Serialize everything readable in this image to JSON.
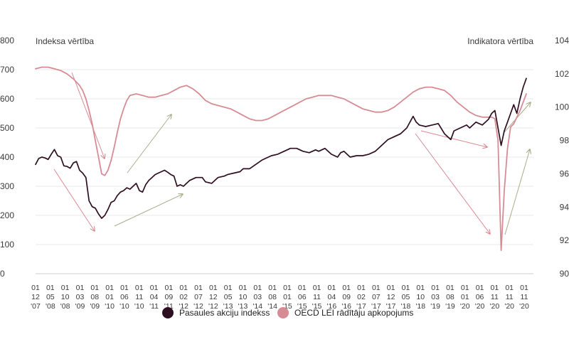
{
  "chart_data": {
    "type": "line",
    "title": "",
    "ylabel_left": "Indeksa vērtība",
    "ylabel_right": "Indikatora vērtība",
    "ylim_left": [
      0,
      800
    ],
    "yticks_left": [
      "0",
      "100",
      "200",
      "300",
      "400",
      "500",
      "600",
      "700",
      "800"
    ],
    "ylim_right": [
      90,
      104
    ],
    "yticks_right": [
      "90",
      "92",
      "94",
      "96",
      "98",
      "100",
      "102",
      "104"
    ],
    "x_tick_labels": [
      [
        "01",
        "12",
        "'07"
      ],
      [
        "01",
        "05",
        "'08"
      ],
      [
        "01",
        "10",
        "'08"
      ],
      [
        "01",
        "03",
        "'09"
      ],
      [
        "01",
        "08",
        "'09"
      ],
      [
        "01",
        "01",
        "'10"
      ],
      [
        "01",
        "06",
        "'10"
      ],
      [
        "01",
        "11",
        "'10"
      ],
      [
        "01",
        "04",
        "'11"
      ],
      [
        "01",
        "09",
        "'11"
      ],
      [
        "01",
        "02",
        "'12"
      ],
      [
        "01",
        "07",
        "'12"
      ],
      [
        "01",
        "12",
        "'12"
      ],
      [
        "01",
        "05",
        "'13"
      ],
      [
        "01",
        "10",
        "'13"
      ],
      [
        "01",
        "03",
        "'14"
      ],
      [
        "01",
        "08",
        "'14"
      ],
      [
        "01",
        "01",
        "'15"
      ],
      [
        "01",
        "06",
        "'15"
      ],
      [
        "01",
        "11",
        "'15"
      ],
      [
        "01",
        "04",
        "'16"
      ],
      [
        "01",
        "09",
        "'16"
      ],
      [
        "01",
        "02",
        "'17"
      ],
      [
        "01",
        "07",
        "'17"
      ],
      [
        "01",
        "12",
        "'17"
      ],
      [
        "01",
        "05",
        "'18"
      ],
      [
        "01",
        "10",
        "'18"
      ],
      [
        "01",
        "03",
        "'19"
      ],
      [
        "01",
        "08",
        "'19"
      ],
      [
        "01",
        "01",
        "'20"
      ],
      [
        "01",
        "06",
        "'20"
      ],
      [
        "01",
        "11",
        "'20"
      ],
      [
        "01",
        "11",
        "'20"
      ],
      [
        "01",
        "11",
        "'20"
      ]
    ],
    "series": [
      {
        "name": "Pasaules akciju indekss",
        "axis": "left",
        "color": "#2e0f22",
        "x": [
          "2007-12",
          "2008-01",
          "2008-02",
          "2008-03",
          "2008-04",
          "2008-05",
          "2008-06",
          "2008-07",
          "2008-08",
          "2008-09",
          "2008-10",
          "2008-11",
          "2008-12",
          "2009-01",
          "2009-02",
          "2009-03",
          "2009-04",
          "2009-05",
          "2009-06",
          "2009-07",
          "2009-08",
          "2009-09",
          "2009-10",
          "2009-11",
          "2009-12",
          "2010-01",
          "2010-02",
          "2010-03",
          "2010-04",
          "2010-05",
          "2010-06",
          "2010-07",
          "2010-08",
          "2010-09",
          "2010-10",
          "2010-11",
          "2010-12",
          "2011-01",
          "2011-02",
          "2011-03",
          "2011-04",
          "2011-05",
          "2011-06",
          "2011-07",
          "2011-08",
          "2011-09",
          "2011-10",
          "2011-11",
          "2011-12",
          "2012-01",
          "2012-03",
          "2012-05",
          "2012-06",
          "2012-08",
          "2012-09",
          "2012-10",
          "2012-12",
          "2013-01",
          "2013-03",
          "2013-05",
          "2013-06",
          "2013-08",
          "2013-10",
          "2013-12",
          "2014-01",
          "2014-03",
          "2014-05",
          "2014-07",
          "2014-08",
          "2014-09",
          "2014-11",
          "2015-01",
          "2015-03",
          "2015-05",
          "2015-06",
          "2015-08",
          "2015-10",
          "2015-12",
          "2016-01",
          "2016-02",
          "2016-04",
          "2016-06",
          "2016-08",
          "2016-10",
          "2016-12",
          "2017-02",
          "2017-04",
          "2017-06",
          "2017-08",
          "2017-10",
          "2017-12",
          "2018-01",
          "2018-02",
          "2018-04",
          "2018-06",
          "2018-08",
          "2018-10",
          "2018-12",
          "2019-01",
          "2019-03",
          "2019-05",
          "2019-06",
          "2019-08",
          "2019-10",
          "2019-12",
          "2020-01",
          "2020-02",
          "2020-03",
          "2020-04",
          "2020-05",
          "2020-06",
          "2020-07",
          "2020-08",
          "2020-09",
          "2020-10",
          "2020-11",
          "2020-12"
        ],
        "values": [
          375,
          395,
          400,
          397,
          392,
          410,
          426,
          405,
          400,
          370,
          368,
          362,
          380,
          385,
          355,
          345,
          330,
          250,
          230,
          225,
          205,
          190,
          200,
          220,
          245,
          250,
          268,
          280,
          285,
          295,
          290,
          300,
          310,
          285,
          280,
          305,
          320,
          330,
          340,
          345,
          350,
          355,
          348,
          340,
          335,
          300,
          305,
          300,
          310,
          320,
          330,
          330,
          315,
          310,
          320,
          330,
          335,
          340,
          345,
          350,
          360,
          360,
          375,
          390,
          395,
          405,
          410,
          420,
          425,
          430,
          430,
          420,
          415,
          425,
          420,
          430,
          410,
          400,
          415,
          420,
          400,
          405,
          405,
          410,
          420,
          440,
          460,
          470,
          480,
          500,
          540,
          520,
          510,
          505,
          510,
          515,
          480,
          460,
          490,
          500,
          510,
          500,
          520,
          510,
          530,
          550,
          560,
          500,
          440,
          490,
          520,
          550,
          580,
          550,
          600,
          640,
          670
        ]
      },
      {
        "name": "OECD LEI rādītāju apkopojums",
        "axis": "right",
        "color": "#d78c95",
        "x": [
          "2007-12",
          "2008-02",
          "2008-04",
          "2008-06",
          "2008-08",
          "2008-10",
          "2008-12",
          "2009-02",
          "2009-03",
          "2009-04",
          "2009-05",
          "2009-06",
          "2009-07",
          "2009-08",
          "2009-09",
          "2009-10",
          "2009-11",
          "2009-12",
          "2010-01",
          "2010-02",
          "2010-03",
          "2010-04",
          "2010-05",
          "2010-06",
          "2010-08",
          "2010-10",
          "2010-12",
          "2011-02",
          "2011-04",
          "2011-06",
          "2011-08",
          "2011-10",
          "2011-12",
          "2012-02",
          "2012-04",
          "2012-06",
          "2012-08",
          "2012-10",
          "2012-12",
          "2013-02",
          "2013-04",
          "2013-06",
          "2013-08",
          "2013-10",
          "2013-12",
          "2014-02",
          "2014-04",
          "2014-06",
          "2014-08",
          "2014-10",
          "2014-12",
          "2015-02",
          "2015-04",
          "2015-06",
          "2015-08",
          "2015-10",
          "2015-12",
          "2016-02",
          "2016-04",
          "2016-06",
          "2016-08",
          "2016-10",
          "2016-12",
          "2017-02",
          "2017-04",
          "2017-06",
          "2017-08",
          "2017-10",
          "2017-12",
          "2018-02",
          "2018-04",
          "2018-06",
          "2018-08",
          "2018-10",
          "2018-12",
          "2019-02",
          "2019-04",
          "2019-06",
          "2019-08",
          "2019-10",
          "2019-12",
          "2020-01",
          "2020-02",
          "2020-03",
          "2020-04",
          "2020-05",
          "2020-06",
          "2020-07",
          "2020-08",
          "2020-09",
          "2020-10",
          "2020-11",
          "2020-12"
        ],
        "values": [
          102.3,
          102.4,
          102.4,
          102.3,
          102.2,
          102.0,
          101.7,
          101.3,
          101.0,
          100.5,
          99.8,
          99.0,
          98.0,
          97.0,
          96.0,
          95.9,
          96.2,
          96.8,
          97.6,
          98.5,
          99.3,
          99.9,
          100.4,
          100.7,
          100.8,
          100.7,
          100.6,
          100.6,
          100.7,
          100.8,
          101.0,
          101.2,
          101.3,
          101.1,
          100.8,
          100.4,
          100.2,
          100.1,
          100.0,
          99.9,
          99.7,
          99.5,
          99.3,
          99.2,
          99.2,
          99.3,
          99.5,
          99.7,
          99.9,
          100.1,
          100.3,
          100.5,
          100.6,
          100.7,
          100.7,
          100.7,
          100.6,
          100.5,
          100.3,
          100.1,
          99.9,
          99.8,
          99.7,
          99.7,
          99.8,
          100.0,
          100.3,
          100.6,
          100.9,
          101.1,
          101.2,
          101.2,
          101.1,
          101.0,
          100.7,
          100.3,
          100.0,
          99.7,
          99.5,
          99.4,
          99.4,
          99.4,
          99.3,
          98.0,
          91.4,
          95.0,
          97.5,
          98.8,
          99.0,
          99.4,
          99.8,
          100.3,
          100.8
        ]
      }
    ],
    "annotations": "decorative arrows marking downturns (pink) and recoveries (olive green)",
    "grid": "horizontal",
    "legend": "bottom-center"
  },
  "legend": {
    "items": [
      {
        "label": "Pasaules akciju indekss",
        "color": "#2e0f22"
      },
      {
        "label": "OECD LEI rādītāju apkopojums",
        "color": "#d78c95"
      }
    ]
  }
}
